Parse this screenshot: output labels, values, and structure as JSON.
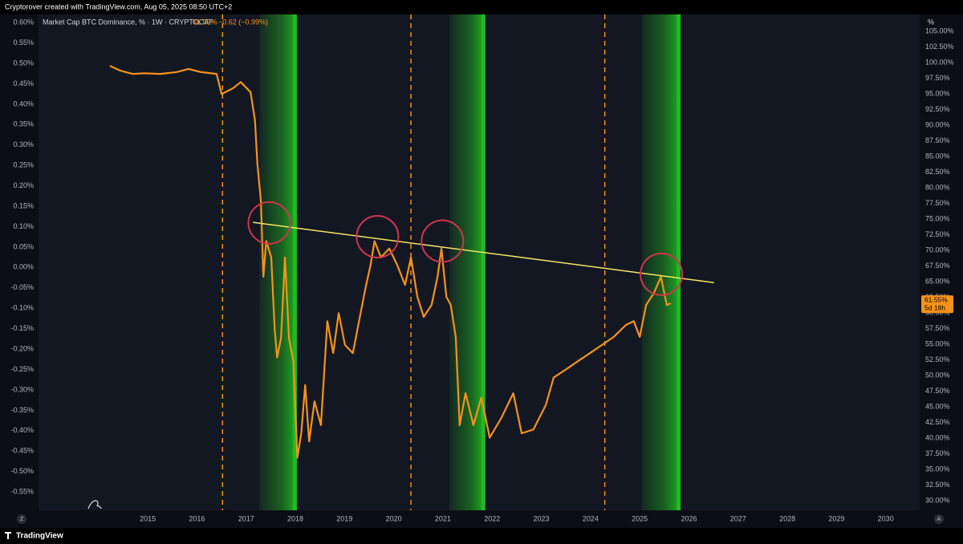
{
  "header": "Cryptorover created with TradingView.com, Aug 05, 2025 08:50 UTC+2",
  "footer": "TradingView",
  "ui": {
    "unit_button": "%",
    "left_button": "Z",
    "right_button": "A"
  },
  "chart_data": {
    "type": "line",
    "title": "Market Cap BTC Dominance, % · 1W · CRYPTOCAP",
    "last_value_label": "61.55%",
    "change_label": "−0.62 (−0.99%)",
    "countdown_label": "5d 18h",
    "x": [
      2014.23,
      2014.45,
      2014.69,
      2014.93,
      2015.26,
      2015.59,
      2015.83,
      2016.08,
      2016.4,
      2016.5,
      2016.73,
      2016.89,
      2017.09,
      2017.18,
      2017.23,
      2017.3,
      2017.35,
      2017.41,
      2017.51,
      2017.58,
      2017.63,
      2017.71,
      2017.79,
      2017.87,
      2017.96,
      2018.04,
      2018.12,
      2018.2,
      2018.28,
      2018.39,
      2018.52,
      2018.65,
      2018.77,
      2018.88,
      2019.01,
      2019.17,
      2019.42,
      2019.53,
      2019.61,
      2019.74,
      2019.91,
      2020.07,
      2020.23,
      2020.35,
      2020.48,
      2020.61,
      2020.77,
      2020.89,
      2020.97,
      2021.07,
      2021.16,
      2021.26,
      2021.34,
      2021.46,
      2021.62,
      2021.78,
      2021.95,
      2022.19,
      2022.43,
      2022.6,
      2022.84,
      2023.09,
      2023.25,
      2023.5,
      2023.74,
      2023.99,
      2024.23,
      2024.47,
      2024.72,
      2024.88,
      2025.0,
      2025.13,
      2025.29,
      2025.43,
      2025.5,
      2025.55,
      2025.63
    ],
    "series": [
      {
        "name": "BTC Dominance",
        "color": "#f7931a",
        "values": [
          99.5,
          98.7,
          98.2,
          98.3,
          98.2,
          98.5,
          99.0,
          98.5,
          98.2,
          95.0,
          95.9,
          96.9,
          95.3,
          90.8,
          83.7,
          77.9,
          65.8,
          71.5,
          68.9,
          57.4,
          52.9,
          56.0,
          68.9,
          56.0,
          52.3,
          36.9,
          40.8,
          48.5,
          39.5,
          45.9,
          42.1,
          58.7,
          53.6,
          60.0,
          54.9,
          53.6,
          63.8,
          67.7,
          71.5,
          68.9,
          70.3,
          67.7,
          64.5,
          68.9,
          62.6,
          59.4,
          61.3,
          65.8,
          70.3,
          62.6,
          61.3,
          56.2,
          42.1,
          47.2,
          42.1,
          46.5,
          40.1,
          43.3,
          47.2,
          40.8,
          41.4,
          45.3,
          49.7,
          51.0,
          52.3,
          53.6,
          54.9,
          56.2,
          58.1,
          58.7,
          56.2,
          61.3,
          63.2,
          65.8,
          63.2,
          61.3,
          61.55
        ]
      }
    ],
    "xlim": [
      2012.78,
      2030.69
    ],
    "xticks": [
      2015,
      2016,
      2017,
      2018,
      2019,
      2020,
      2021,
      2022,
      2023,
      2024,
      2025,
      2026,
      2027,
      2028,
      2029,
      2030
    ],
    "ylim": [
      28.5,
      107.7
    ],
    "yticks": [
      {
        "value": 30,
        "label": "30.00%"
      },
      {
        "value": 32.5,
        "label": "32.50%"
      },
      {
        "value": 35,
        "label": "35.00%"
      },
      {
        "value": 37.5,
        "label": "37.50%"
      },
      {
        "value": 40,
        "label": "40.00%"
      },
      {
        "value": 42.5,
        "label": "42.50%"
      },
      {
        "value": 45,
        "label": "45.00%"
      },
      {
        "value": 47.5,
        "label": "47.50%"
      },
      {
        "value": 50,
        "label": "50.00%"
      },
      {
        "value": 52.5,
        "label": "52.50%"
      },
      {
        "value": 55,
        "label": "55.00%"
      },
      {
        "value": 57.5,
        "label": "57.50%"
      },
      {
        "value": 60,
        "label": "60.00%"
      },
      {
        "value": 62.5,
        "label": "62.50%"
      },
      {
        "value": 65,
        "label": "65.00%"
      },
      {
        "value": 67.5,
        "label": "67.50%"
      },
      {
        "value": 70,
        "label": "70.00%"
      },
      {
        "value": 72.5,
        "label": "72.50%"
      },
      {
        "value": 75,
        "label": "75.00%"
      },
      {
        "value": 77.5,
        "label": "77.50%"
      },
      {
        "value": 80,
        "label": "80.00%"
      },
      {
        "value": 82.5,
        "label": "82.50%"
      },
      {
        "value": 85,
        "label": "85.00%"
      },
      {
        "value": 87.5,
        "label": "87.50%"
      },
      {
        "value": 90,
        "label": "90.00%"
      },
      {
        "value": 92.5,
        "label": "92.50%"
      },
      {
        "value": 95,
        "label": "95.00%"
      },
      {
        "value": 97.5,
        "label": "97.50%"
      },
      {
        "value": 100,
        "label": "100.00%"
      },
      {
        "value": 102.5,
        "label": "102.50%"
      },
      {
        "value": 105,
        "label": "105.00%"
      }
    ],
    "y2lim": [
      -0.595,
      0.62
    ],
    "y2ticks": [
      {
        "value": -0.55,
        "label": "-0.55%"
      },
      {
        "value": -0.5,
        "label": "-0.50%"
      },
      {
        "value": -0.45,
        "label": "-0.45%"
      },
      {
        "value": -0.4,
        "label": "-0.40%"
      },
      {
        "value": -0.35,
        "label": "-0.35%"
      },
      {
        "value": -0.3,
        "label": "-0.30%"
      },
      {
        "value": -0.25,
        "label": "-0.25%"
      },
      {
        "value": -0.2,
        "label": "-0.20%"
      },
      {
        "value": -0.15,
        "label": "-0.15%"
      },
      {
        "value": -0.1,
        "label": "-0.10%"
      },
      {
        "value": -0.05,
        "label": "-0.05%"
      },
      {
        "value": 0,
        "label": "0.00%"
      },
      {
        "value": 0.05,
        "label": "0.05%"
      },
      {
        "value": 0.1,
        "label": "0.10%"
      },
      {
        "value": 0.15,
        "label": "0.15%"
      },
      {
        "value": 0.2,
        "label": "0.20%"
      },
      {
        "value": 0.25,
        "label": "0.25%"
      },
      {
        "value": 0.3,
        "label": "0.30%"
      },
      {
        "value": 0.35,
        "label": "0.35%"
      },
      {
        "value": 0.4,
        "label": "0.40%"
      },
      {
        "value": 0.45,
        "label": "0.45%"
      },
      {
        "value": 0.5,
        "label": "0.50%"
      },
      {
        "value": 0.55,
        "label": "0.55%"
      },
      {
        "value": 0.6,
        "label": "0.60%"
      }
    ],
    "vlines": {
      "color": "#f7931a",
      "x": [
        2016.52,
        2020.35,
        2024.29
      ]
    },
    "bands": {
      "color": "#1fbf1f",
      "ranges": [
        [
          2017.27,
          2018.03
        ],
        [
          2021.13,
          2021.86
        ],
        [
          2025.04,
          2025.83
        ]
      ]
    },
    "trendline": {
      "color": "#f5e663",
      "x": [
        2017.14,
        2026.51
      ],
      "y": [
        74.49,
        64.87
      ]
    },
    "highlights": {
      "color": "#d0344f",
      "x": [
        2017.47,
        2019.67,
        2020.99,
        2025.44
      ],
      "y": [
        74.4,
        72.2,
        71.5,
        66.2
      ]
    }
  }
}
